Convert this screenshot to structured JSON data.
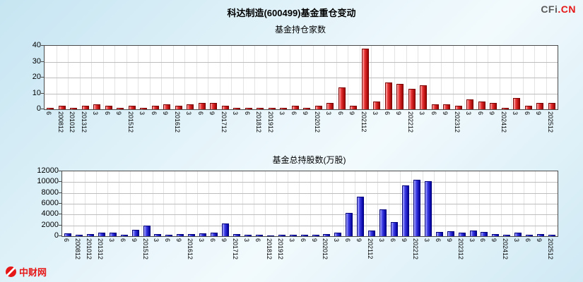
{
  "header": {
    "title": "科达制造(600499)基金重仓变动",
    "logo_cfi": "CFi",
    "logo_cn": ".CN",
    "watermark": "中财网"
  },
  "colors": {
    "background": "#d7edf7",
    "plot_background": "#ffffff",
    "grid": "#bdbdbd",
    "funds_bar": "#cc0000",
    "shares_bar": "#2222cc",
    "logo_red": "#e61717"
  },
  "chart_data": [
    {
      "type": "bar",
      "title": "基金持仓家数",
      "xlabel": "",
      "ylabel": "",
      "ylim": [
        0,
        40
      ],
      "yticks": [
        0,
        10,
        20,
        30,
        40
      ],
      "grid": true,
      "bar_color": "#cc0000",
      "categories": [
        "6",
        "200812",
        "201012",
        "201312",
        "3",
        "6",
        "9",
        "201512",
        "3",
        "6",
        "9",
        "201612",
        "3",
        "6",
        "9",
        "201712",
        "3",
        "6",
        "201812",
        "201912",
        "3",
        "6",
        "9",
        "202012",
        "3",
        "6",
        "9",
        "202112",
        "3",
        "6",
        "9",
        "202212",
        "3",
        "6",
        "9",
        "202312",
        "3",
        "6",
        "9",
        "202412",
        "3",
        "6",
        "9",
        "202512"
      ],
      "values": [
        1,
        2,
        1,
        2,
        3,
        2,
        1,
        2,
        1,
        2,
        3,
        2,
        3,
        4,
        4,
        2,
        1,
        1,
        1,
        1,
        1,
        2,
        1,
        2,
        4,
        14,
        2,
        38,
        5,
        17,
        16,
        13,
        15,
        3,
        3,
        2,
        6,
        5,
        4,
        1,
        7,
        2,
        4,
        4
      ]
    },
    {
      "type": "bar",
      "title": "基金总持股数(万股)",
      "xlabel": "",
      "ylabel": "",
      "ylim": [
        0,
        12000
      ],
      "yticks": [
        0,
        2000,
        4000,
        6000,
        8000,
        10000,
        12000
      ],
      "grid": true,
      "bar_color": "#2222cc",
      "categories": [
        "6",
        "200812",
        "201012",
        "201312",
        "3",
        "6",
        "9",
        "201512",
        "3",
        "6",
        "9",
        "201612",
        "3",
        "6",
        "9",
        "201712",
        "3",
        "6",
        "201812",
        "201912",
        "3",
        "6",
        "9",
        "202012",
        "3",
        "6",
        "9",
        "202112",
        "3",
        "6",
        "9",
        "202212",
        "3",
        "6",
        "9",
        "202312",
        "3",
        "6",
        "9",
        "202412",
        "3",
        "6",
        "9",
        "202512"
      ],
      "values": [
        500,
        300,
        420,
        700,
        600,
        300,
        1150,
        1900,
        350,
        300,
        450,
        400,
        550,
        650,
        2300,
        350,
        250,
        200,
        150,
        200,
        250,
        300,
        250,
        400,
        600,
        4300,
        7300,
        1100,
        5000,
        2600,
        9400,
        10400,
        10200,
        800,
        900,
        700,
        1000,
        800,
        400,
        300,
        700,
        250,
        400,
        300
      ]
    }
  ]
}
